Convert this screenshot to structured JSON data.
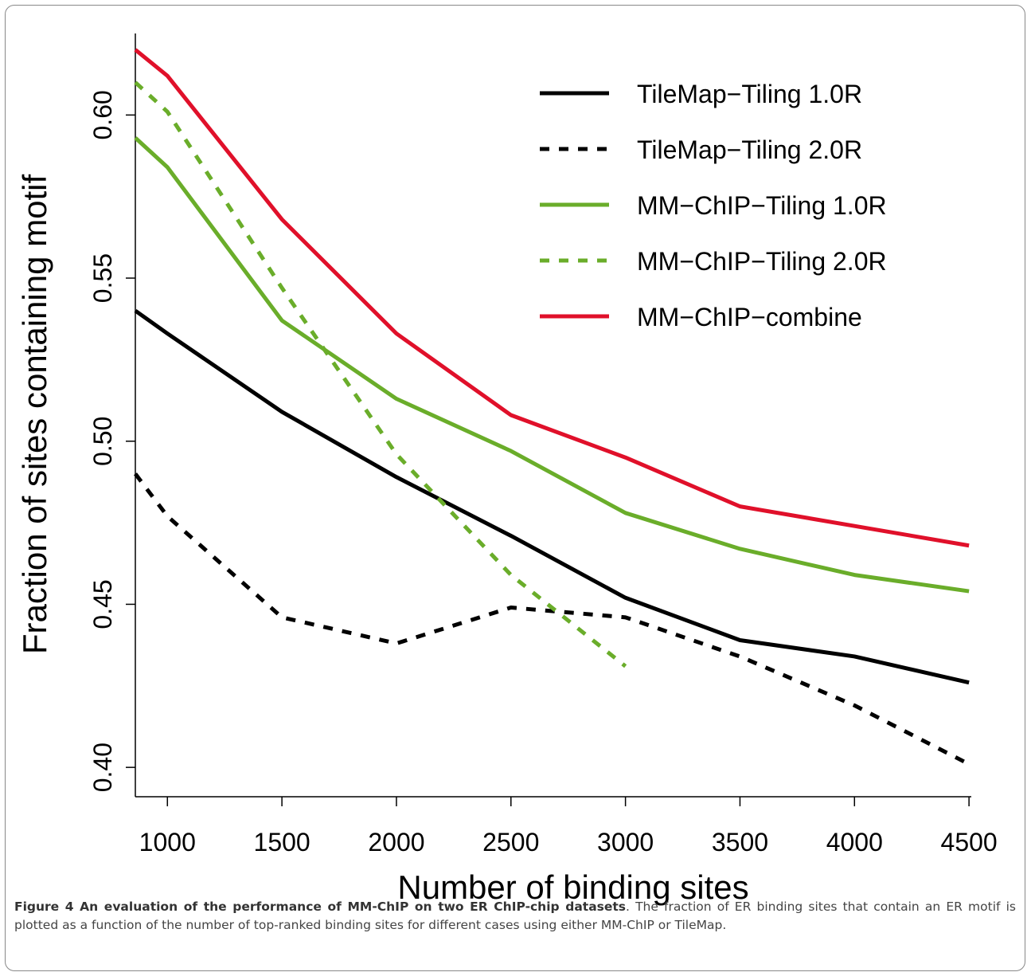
{
  "chart_data": {
    "type": "line",
    "x_label": "Number of binding sites",
    "y_label": "Fraction of sites containing motif",
    "x": [
      860,
      1000,
      1500,
      2000,
      2500,
      3000,
      3500,
      4000,
      4500
    ],
    "xlim": [
      860,
      4510
    ],
    "ylim": [
      0.391,
      0.625
    ],
    "xticks": [
      1000,
      1500,
      2000,
      2500,
      3000,
      3500,
      4000,
      4500
    ],
    "yticks": [
      {
        "value": 0.4,
        "label": "0.40"
      },
      0.45,
      {
        "value": 0.5,
        "label": "0.50"
      },
      0.55,
      {
        "value": 0.6,
        "label": "0.60"
      }
    ],
    "series": [
      {
        "name": "TileMap−Tiling 1.0R",
        "color": "#000000",
        "dashed": false,
        "values": [
          0.54,
          0.533,
          0.509,
          0.489,
          0.471,
          0.452,
          0.439,
          0.434,
          0.426
        ]
      },
      {
        "name": "TileMap−Tiling 2.0R",
        "color": "#000000",
        "dashed": true,
        "values": [
          0.49,
          0.477,
          0.446,
          0.438,
          0.449,
          0.446,
          0.434,
          0.419,
          0.401
        ]
      },
      {
        "name": "MM−ChIP−Tiling 1.0R",
        "color": "#6aad2a",
        "dashed": false,
        "values": [
          0.593,
          0.584,
          0.537,
          0.513,
          0.497,
          0.478,
          0.467,
          0.459,
          0.454
        ]
      },
      {
        "name": "MM−ChIP−Tiling 2.0R",
        "color": "#6aad2a",
        "dashed": true,
        "values": [
          0.61,
          0.601,
          0.547,
          0.496,
          0.459,
          0.431,
          null,
          null,
          null
        ]
      },
      {
        "name": "MM−ChIP−combine",
        "color": "#e0102a",
        "dashed": false,
        "values": [
          0.62,
          0.612,
          0.568,
          0.533,
          0.508,
          0.495,
          0.48,
          0.474,
          0.468
        ]
      }
    ]
  },
  "caption_title": "Figure 4 An evaluation of the performance of MM-ChIP on two ER ChIP-chip datasets",
  "caption_text": ". The fraction of ER binding sites that contain an ER motif is plotted as a function of the number of top-ranked binding sites for different cases using either MM-ChIP or TileMap."
}
